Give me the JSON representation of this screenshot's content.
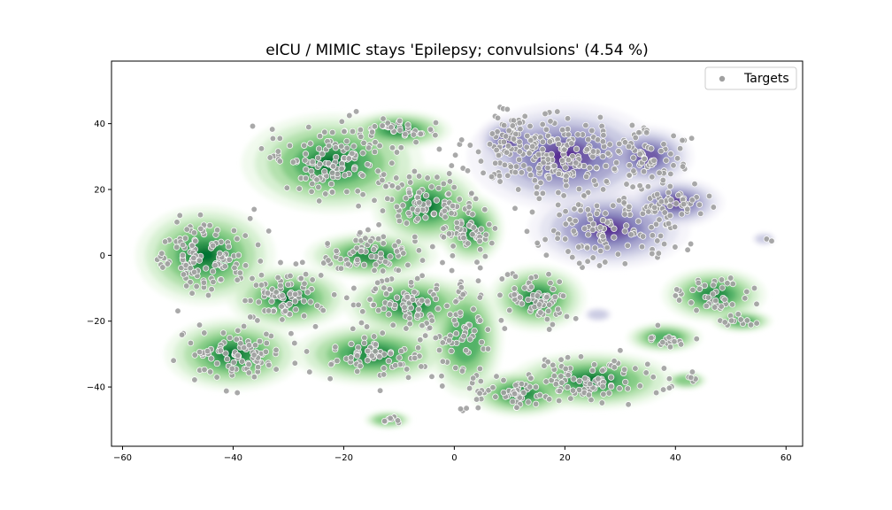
{
  "chart_data": {
    "type": "scatter",
    "title": "eICU / MIMIC stays 'Epilepsy; convulsions' (4.54 %)",
    "xlabel": "",
    "ylabel": "",
    "xlim": [
      -62,
      63
    ],
    "ylim": [
      -58,
      59
    ],
    "xticks": [
      -60,
      -40,
      -20,
      0,
      20,
      40,
      60
    ],
    "yticks": [
      40,
      20,
      0,
      -20,
      -40
    ],
    "xtick_labels": [
      "−60",
      "−40",
      "−20",
      "0",
      "20",
      "40",
      "60"
    ],
    "ytick_labels": [
      "40",
      "20",
      "0",
      "−20",
      "−40"
    ],
    "grid": false,
    "legend": {
      "position": "top-right",
      "entries": [
        "Targets"
      ]
    },
    "colors": {
      "green_density": "#2e9a4a",
      "purple_density": "#6a3d9a",
      "marker_fill": "#a0a0a0",
      "marker_edge": "#ffffff"
    },
    "density_layers": [
      {
        "cmap": "Greens",
        "regions": [
          {
            "cx": -45,
            "cy": 0,
            "rx": 10,
            "ry": 12,
            "weight": 1.0
          },
          {
            "cx": -40,
            "cy": -30,
            "rx": 10,
            "ry": 9,
            "weight": 0.95
          },
          {
            "cx": -30,
            "cy": -13,
            "rx": 9,
            "ry": 8,
            "weight": 0.9
          },
          {
            "cx": -22,
            "cy": 28,
            "rx": 13,
            "ry": 12,
            "weight": 1.0
          },
          {
            "cx": -10,
            "cy": 38,
            "rx": 8,
            "ry": 5,
            "weight": 0.8
          },
          {
            "cx": -5,
            "cy": 15,
            "rx": 8,
            "ry": 10,
            "weight": 0.95
          },
          {
            "cx": -15,
            "cy": 0,
            "rx": 10,
            "ry": 6,
            "weight": 0.85
          },
          {
            "cx": -8,
            "cy": -15,
            "rx": 10,
            "ry": 8,
            "weight": 0.85
          },
          {
            "cx": -15,
            "cy": -30,
            "rx": 12,
            "ry": 8,
            "weight": 0.8
          },
          {
            "cx": 2,
            "cy": -25,
            "rx": 6,
            "ry": 16,
            "weight": 0.7
          },
          {
            "cx": 3,
            "cy": 8,
            "rx": 5,
            "ry": 9,
            "weight": 0.85
          },
          {
            "cx": 15,
            "cy": -13,
            "rx": 7,
            "ry": 8,
            "weight": 1.0
          },
          {
            "cx": 25,
            "cy": -38,
            "rx": 12,
            "ry": 7,
            "weight": 1.0
          },
          {
            "cx": 12,
            "cy": -42,
            "rx": 8,
            "ry": 6,
            "weight": 0.8
          },
          {
            "cx": 47,
            "cy": -12,
            "rx": 8,
            "ry": 7,
            "weight": 0.8
          },
          {
            "cx": 38,
            "cy": -25,
            "rx": 6,
            "ry": 4,
            "weight": 0.7
          },
          {
            "cx": 52,
            "cy": -20,
            "rx": 5,
            "ry": 3,
            "weight": 0.65
          },
          {
            "cx": -12,
            "cy": -50,
            "rx": 4,
            "ry": 2.5,
            "weight": 0.5
          },
          {
            "cx": 42,
            "cy": -38,
            "rx": 3.5,
            "ry": 2.5,
            "weight": 0.5
          }
        ]
      },
      {
        "cmap": "Purples",
        "regions": [
          {
            "cx": 20,
            "cy": 30,
            "rx": 14,
            "ry": 13,
            "weight": 1.0
          },
          {
            "cx": 10,
            "cy": 35,
            "rx": 5,
            "ry": 6,
            "weight": 0.85
          },
          {
            "cx": 28,
            "cy": 8,
            "rx": 12,
            "ry": 10,
            "weight": 0.9
          },
          {
            "cx": 40,
            "cy": 16,
            "rx": 7,
            "ry": 6,
            "weight": 1.0
          },
          {
            "cx": 35,
            "cy": 30,
            "rx": 7,
            "ry": 8,
            "weight": 0.8
          },
          {
            "cx": 56,
            "cy": 5,
            "rx": 2,
            "ry": 1.8,
            "weight": 0.4
          },
          {
            "cx": 26,
            "cy": -18,
            "rx": 2.5,
            "ry": 2,
            "weight": 0.35
          }
        ]
      }
    ],
    "series": [
      {
        "name": "Targets",
        "marker": "circle",
        "clusters": [
          {
            "cx": -45,
            "cy": 0,
            "sx": 6,
            "sy": 7,
            "n": 120
          },
          {
            "cx": -40,
            "cy": -30,
            "sx": 6,
            "sy": 5,
            "n": 90
          },
          {
            "cx": -30,
            "cy": -13,
            "sx": 5,
            "sy": 5,
            "n": 80
          },
          {
            "cx": -22,
            "cy": 28,
            "sx": 7,
            "sy": 7,
            "n": 130
          },
          {
            "cx": -10,
            "cy": 38,
            "sx": 4,
            "sy": 3,
            "n": 40
          },
          {
            "cx": -5,
            "cy": 15,
            "sx": 5,
            "sy": 6,
            "n": 90
          },
          {
            "cx": -15,
            "cy": 0,
            "sx": 6,
            "sy": 4,
            "n": 70
          },
          {
            "cx": -8,
            "cy": -15,
            "sx": 6,
            "sy": 5,
            "n": 80
          },
          {
            "cx": -15,
            "cy": -30,
            "sx": 7,
            "sy": 5,
            "n": 70
          },
          {
            "cx": 2,
            "cy": -25,
            "sx": 3,
            "sy": 10,
            "n": 60
          },
          {
            "cx": 3,
            "cy": 8,
            "sx": 3,
            "sy": 5,
            "n": 45
          },
          {
            "cx": 15,
            "cy": -13,
            "sx": 4,
            "sy": 5,
            "n": 70
          },
          {
            "cx": 25,
            "cy": -38,
            "sx": 7,
            "sy": 4,
            "n": 90
          },
          {
            "cx": 12,
            "cy": -42,
            "sx": 5,
            "sy": 3,
            "n": 50
          },
          {
            "cx": 47,
            "cy": -12,
            "sx": 5,
            "sy": 4,
            "n": 40
          },
          {
            "cx": 38,
            "cy": -25,
            "sx": 3,
            "sy": 2,
            "n": 18
          },
          {
            "cx": 52,
            "cy": -20,
            "sx": 3,
            "sy": 1.5,
            "n": 12
          },
          {
            "cx": -12,
            "cy": -50,
            "sx": 2,
            "sy": 1,
            "n": 8
          },
          {
            "cx": 42,
            "cy": -38,
            "sx": 1.5,
            "sy": 1,
            "n": 6
          },
          {
            "cx": 20,
            "cy": 30,
            "sx": 9,
            "sy": 8,
            "n": 220
          },
          {
            "cx": 10,
            "cy": 35,
            "sx": 3,
            "sy": 4,
            "n": 40
          },
          {
            "cx": 28,
            "cy": 8,
            "sx": 7,
            "sy": 6,
            "n": 110
          },
          {
            "cx": 40,
            "cy": 16,
            "sx": 4,
            "sy": 3,
            "n": 45
          },
          {
            "cx": 35,
            "cy": 30,
            "sx": 4,
            "sy": 5,
            "n": 50
          },
          {
            "cx": 56,
            "cy": 5,
            "sx": 0.6,
            "sy": 0.6,
            "n": 2
          },
          {
            "cx": 1,
            "cy": -47,
            "sx": 1,
            "sy": 0.6,
            "n": 3
          }
        ]
      }
    ]
  }
}
